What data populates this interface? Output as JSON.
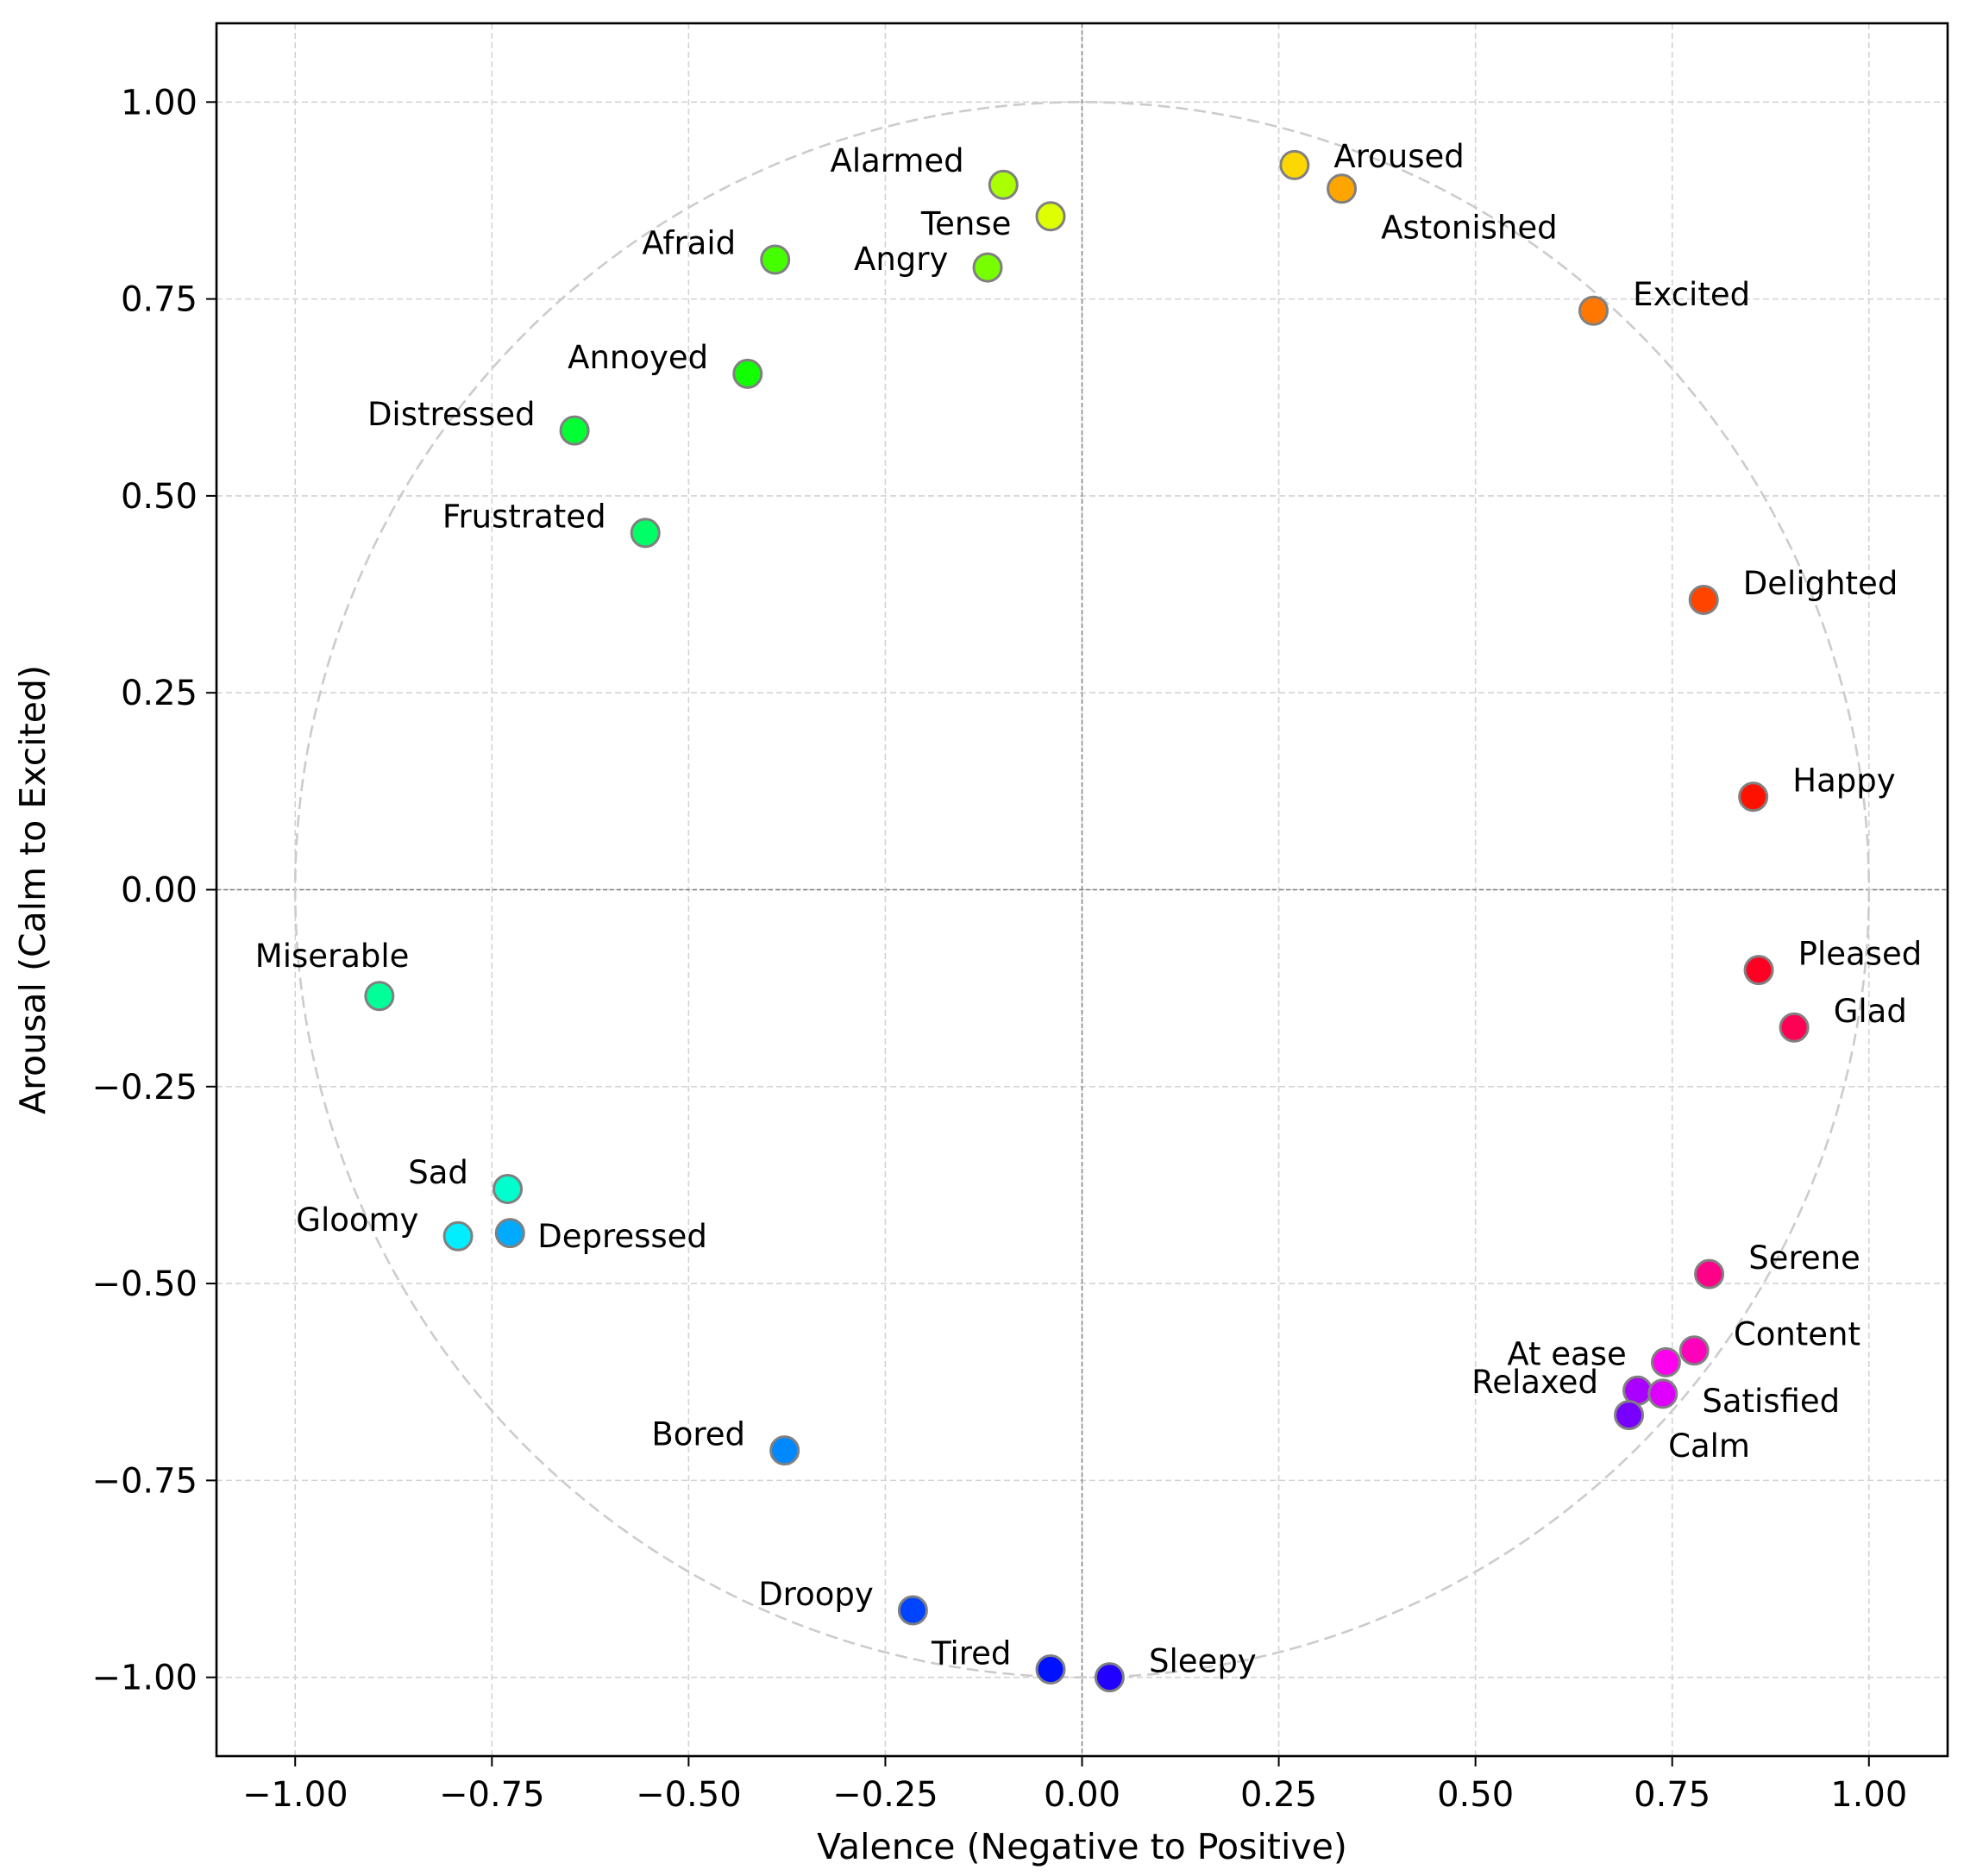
{
  "colors": {
    "grid": "#d3d3d3",
    "zero_line": "#808080",
    "unit_circle": "#cccccc",
    "marker_edge": "#808080"
  },
  "chart_data": {
    "type": "scatter",
    "title": "",
    "xlabel": "Valence (Negative to Positive)",
    "ylabel": "Arousal (Calm to Excited)",
    "xlim": [
      -1.1,
      1.1
    ],
    "ylim": [
      -1.1,
      1.1
    ],
    "xticks": [
      -1.0,
      -0.75,
      -0.5,
      -0.25,
      0.0,
      0.25,
      0.5,
      0.75,
      1.0
    ],
    "yticks": [
      -1.0,
      -0.75,
      -0.5,
      -0.25,
      0.0,
      0.25,
      0.5,
      0.75,
      1.0
    ],
    "xtick_labels": [
      "−1.00",
      "−0.75",
      "−0.50",
      "−0.25",
      "0.00",
      "0.25",
      "0.50",
      "0.75",
      "1.00"
    ],
    "ytick_labels": [
      "−1.00",
      "−0.75",
      "−0.50",
      "−0.25",
      "0.00",
      "0.25",
      "0.50",
      "0.75",
      "1.00"
    ],
    "grid": true,
    "unit_circle": true,
    "points": [
      {
        "label": "Alarmed",
        "x": -0.1,
        "y": 0.895,
        "color": "#aaff00",
        "anchor": "end",
        "dx": -0.05,
        "dy": 0.03
      },
      {
        "label": "Tense",
        "x": -0.04,
        "y": 0.855,
        "color": "#ddff00",
        "anchor": "end",
        "dx": -0.05,
        "dy": -0.01
      },
      {
        "label": "Aroused",
        "x": 0.27,
        "y": 0.92,
        "color": "#ffd700",
        "anchor": "start",
        "dx": 0.05,
        "dy": 0.01
      },
      {
        "label": "Astonished",
        "x": 0.33,
        "y": 0.89,
        "color": "#ffa500",
        "anchor": "start",
        "dx": 0.05,
        "dy": -0.05
      },
      {
        "label": "Afraid",
        "x": -0.39,
        "y": 0.8,
        "color": "#44ff00",
        "anchor": "end",
        "dx": -0.05,
        "dy": 0.02
      },
      {
        "label": "Angry",
        "x": -0.12,
        "y": 0.79,
        "color": "#77ff00",
        "anchor": "end",
        "dx": -0.05,
        "dy": 0.01
      },
      {
        "label": "Excited",
        "x": 0.65,
        "y": 0.735,
        "color": "#ff7700",
        "anchor": "start",
        "dx": 0.05,
        "dy": 0.02
      },
      {
        "label": "Annoyed",
        "x": -0.425,
        "y": 0.655,
        "color": "#11ff00",
        "anchor": "end",
        "dx": -0.05,
        "dy": 0.02
      },
      {
        "label": "Distressed",
        "x": -0.645,
        "y": 0.583,
        "color": "#00ff33",
        "anchor": "end",
        "dx": -0.05,
        "dy": 0.02
      },
      {
        "label": "Frustrated",
        "x": -0.555,
        "y": 0.453,
        "color": "#00ff66",
        "anchor": "end",
        "dx": -0.05,
        "dy": 0.02
      },
      {
        "label": "Delighted",
        "x": 0.79,
        "y": 0.368,
        "color": "#ff4400",
        "anchor": "start",
        "dx": 0.05,
        "dy": 0.02
      },
      {
        "label": "Happy",
        "x": 0.853,
        "y": 0.118,
        "color": "#ff1100",
        "anchor": "start",
        "dx": 0.05,
        "dy": 0.02
      },
      {
        "label": "Pleased",
        "x": 0.86,
        "y": -0.102,
        "color": "#ff0022",
        "anchor": "start",
        "dx": 0.05,
        "dy": 0.02
      },
      {
        "label": "Glad",
        "x": 0.905,
        "y": -0.175,
        "color": "#ff0055",
        "anchor": "start",
        "dx": 0.05,
        "dy": 0.02
      },
      {
        "label": "Miserable",
        "x": -0.893,
        "y": -0.135,
        "color": "#00ff99",
        "anchor": "middle",
        "dx": -0.06,
        "dy": 0.05
      },
      {
        "label": "Sad",
        "x": -0.73,
        "y": -0.38,
        "color": "#00ffcc",
        "anchor": "end",
        "dx": -0.05,
        "dy": 0.02
      },
      {
        "label": "Gloomy",
        "x": -0.793,
        "y": -0.44,
        "color": "#00eeff",
        "anchor": "end",
        "dx": -0.05,
        "dy": 0.02
      },
      {
        "label": "Depressed",
        "x": -0.727,
        "y": -0.436,
        "color": "#00aaff",
        "anchor": "start",
        "dx": 0.035,
        "dy": -0.005
      },
      {
        "label": "Serene",
        "x": 0.797,
        "y": -0.488,
        "color": "#ff0088",
        "anchor": "start",
        "dx": 0.05,
        "dy": 0.02
      },
      {
        "label": "Content",
        "x": 0.778,
        "y": -0.585,
        "color": "#ff00bb",
        "anchor": "start",
        "dx": 0.05,
        "dy": 0.02
      },
      {
        "label": "At ease",
        "x": 0.742,
        "y": -0.6,
        "color": "#ff00ee",
        "anchor": "end",
        "dx": -0.05,
        "dy": 0.01
      },
      {
        "label": "Relaxed",
        "x": 0.706,
        "y": -0.636,
        "color": "#aa00ff",
        "anchor": "end",
        "dx": -0.05,
        "dy": 0.01
      },
      {
        "label": "Satisfied",
        "x": 0.738,
        "y": -0.64,
        "color": "#dd00ff",
        "anchor": "start",
        "dx": 0.05,
        "dy": -0.01
      },
      {
        "label": "Calm",
        "x": 0.695,
        "y": -0.667,
        "color": "#7700ff",
        "anchor": "start",
        "dx": 0.05,
        "dy": -0.04
      },
      {
        "label": "Bored",
        "x": -0.378,
        "y": -0.712,
        "color": "#0088ff",
        "anchor": "end",
        "dx": -0.05,
        "dy": 0.02
      },
      {
        "label": "Droopy",
        "x": -0.215,
        "y": -0.915,
        "color": "#0044ff",
        "anchor": "end",
        "dx": -0.05,
        "dy": 0.02
      },
      {
        "label": "Tired",
        "x": -0.04,
        "y": -0.99,
        "color": "#0011ff",
        "anchor": "end",
        "dx": -0.05,
        "dy": 0.02
      },
      {
        "label": "Sleepy",
        "x": 0.035,
        "y": -1.0,
        "color": "#2200ff",
        "anchor": "start",
        "dx": 0.05,
        "dy": 0.02
      }
    ]
  }
}
